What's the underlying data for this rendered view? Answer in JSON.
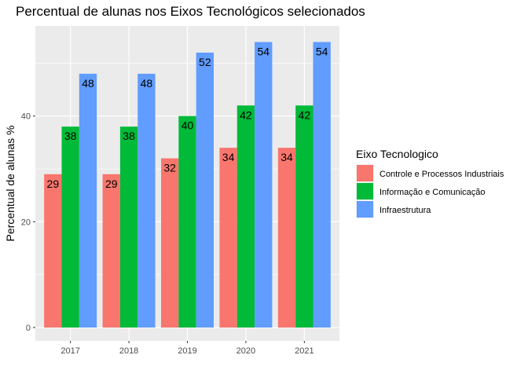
{
  "chart_data": {
    "type": "bar",
    "title": "Percentual de alunas nos Eixos Tecnológicos selecionados",
    "xlabel": "",
    "ylabel": "Percentual de alunas %",
    "categories": [
      "2017",
      "2018",
      "2019",
      "2020",
      "2021"
    ],
    "y_ticks": [
      "0",
      "20",
      "40"
    ],
    "ylim": [
      0,
      56.6
    ],
    "grid": true,
    "legend": {
      "title": "Eixo Tecnologico",
      "position": "right"
    },
    "series": [
      {
        "name": "Controle e Processos Industriais",
        "color": "#F8766D",
        "values": [
          29,
          29,
          32,
          34,
          34
        ]
      },
      {
        "name": "Informação e Comunicação",
        "color": "#00BA38",
        "values": [
          38,
          38,
          40,
          42,
          42
        ]
      },
      {
        "name": "Infraestrutura",
        "color": "#619CFF",
        "values": [
          48,
          48,
          52,
          54,
          54
        ]
      }
    ],
    "plot_background": "#EBEBEB",
    "grid_color": "#FFFFFF"
  }
}
